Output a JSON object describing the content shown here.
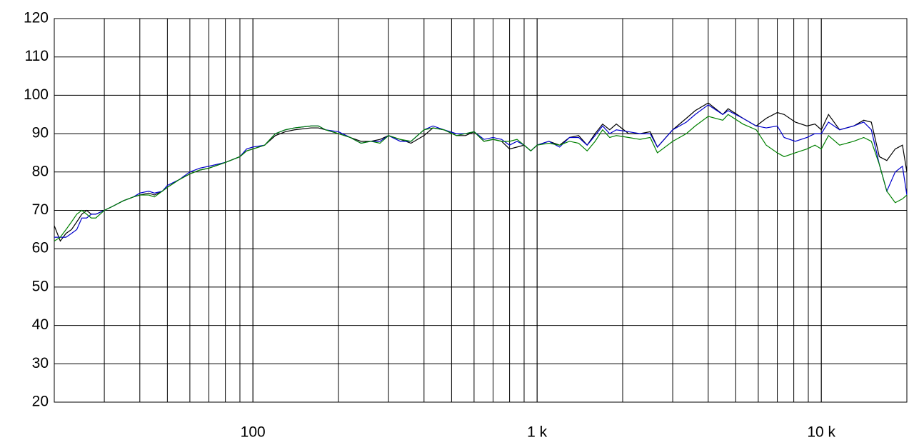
{
  "chart_data": {
    "type": "line",
    "xscale": "log",
    "grid": true,
    "xlim": [
      20,
      20000
    ],
    "ylim": [
      20,
      120
    ],
    "yticks": [
      20,
      30,
      40,
      50,
      60,
      70,
      80,
      90,
      100,
      110,
      120
    ],
    "xticks": [
      100,
      {
        "value": 1000,
        "label": "1 k"
      },
      {
        "value": 10000,
        "label": "10 k"
      }
    ],
    "x_minor_ticks": [
      30,
      40,
      50,
      60,
      70,
      80,
      90,
      200,
      300,
      400,
      500,
      600,
      700,
      800,
      900,
      2000,
      3000,
      4000,
      5000,
      6000,
      7000,
      8000,
      9000
    ],
    "x": [
      20,
      21,
      22,
      23,
      24,
      25,
      26,
      27,
      28,
      30,
      32,
      35,
      38,
      40,
      43,
      45,
      48,
      50,
      55,
      60,
      65,
      70,
      80,
      90,
      95,
      100,
      110,
      120,
      130,
      140,
      160,
      170,
      180,
      200,
      220,
      240,
      260,
      280,
      300,
      330,
      360,
      400,
      430,
      470,
      520,
      560,
      600,
      650,
      700,
      750,
      800,
      850,
      900,
      950,
      1000,
      1100,
      1200,
      1300,
      1400,
      1500,
      1600,
      1700,
      1800,
      1900,
      2100,
      2300,
      2500,
      2650,
      3000,
      3350,
      3600,
      4000,
      4500,
      4700,
      5300,
      5900,
      6400,
      7000,
      7400,
      8100,
      8900,
      9500,
      10000,
      10600,
      11600,
      13000,
      14100,
      15000,
      16000,
      17000,
      18200,
      19300,
      20000
    ],
    "series": [
      {
        "color": "#000000",
        "values": [
          66,
          62,
          64,
          65,
          67,
          69,
          70,
          69,
          69,
          70,
          71,
          72.5,
          73.5,
          74,
          74.5,
          74,
          75,
          76,
          78,
          79.5,
          80.5,
          81,
          82.5,
          84,
          85.5,
          86,
          87,
          89.5,
          90.5,
          91,
          91.5,
          91.5,
          91,
          90,
          89,
          88,
          88,
          88.5,
          89.5,
          88.5,
          87.5,
          89.5,
          91.5,
          91,
          89.5,
          89.5,
          90.5,
          88,
          88.5,
          88,
          86,
          86.5,
          87,
          85.5,
          87,
          88,
          87,
          89,
          89.5,
          87,
          90,
          92.5,
          91,
          92.5,
          90,
          90,
          90.5,
          86.5,
          91,
          94,
          96,
          98,
          95,
          96.5,
          94,
          92,
          94,
          95.5,
          95,
          93,
          92,
          92.5,
          91,
          95,
          91,
          92,
          93.5,
          93,
          84,
          83,
          86,
          87,
          80
        ]
      },
      {
        "color": "#0000cc",
        "values": [
          63,
          63,
          63,
          64,
          65,
          68,
          68,
          69,
          69,
          70,
          71,
          72.5,
          73.5,
          74.5,
          75,
          74.5,
          75,
          76.5,
          78,
          80,
          81,
          81.5,
          82.5,
          84,
          86,
          86.5,
          87,
          90,
          91,
          91.5,
          92,
          92,
          91,
          90.5,
          89,
          87.5,
          88,
          88,
          89.5,
          88,
          88,
          91,
          92,
          91,
          90,
          90,
          90.5,
          88.5,
          89,
          88.5,
          87,
          88,
          87,
          85.5,
          87,
          88,
          86.5,
          89,
          89,
          87,
          89.5,
          92,
          90,
          91,
          90.5,
          90,
          90,
          86.5,
          91,
          93,
          95,
          97.5,
          95,
          96,
          94,
          92,
          91.5,
          92,
          89,
          88,
          89,
          90,
          90,
          93,
          91,
          92,
          93,
          91,
          82,
          75,
          80,
          81.5,
          74
        ]
      },
      {
        "color": "#008000",
        "values": [
          62,
          63,
          65,
          67,
          69,
          70,
          69,
          68,
          68,
          70,
          71,
          72.5,
          73.5,
          74,
          74,
          73.5,
          75,
          76,
          78,
          79.5,
          80.5,
          81,
          82.5,
          84,
          85.5,
          86,
          87,
          90,
          91,
          91.5,
          92,
          92,
          91,
          90,
          89,
          87.5,
          88,
          87.5,
          89.5,
          88.5,
          88,
          91,
          91.5,
          91,
          89.5,
          90,
          90.5,
          88,
          88.5,
          88,
          88,
          88.5,
          87,
          85.5,
          87,
          87.5,
          87,
          88,
          87.5,
          85.5,
          88,
          91,
          89,
          89.5,
          89,
          88.5,
          89,
          85,
          88,
          90,
          92,
          94.5,
          93.5,
          95,
          92.5,
          91,
          87,
          85,
          84,
          85,
          86,
          87,
          86,
          89.5,
          87,
          88,
          89,
          88,
          82,
          75,
          72,
          73,
          74
        ]
      }
    ]
  }
}
